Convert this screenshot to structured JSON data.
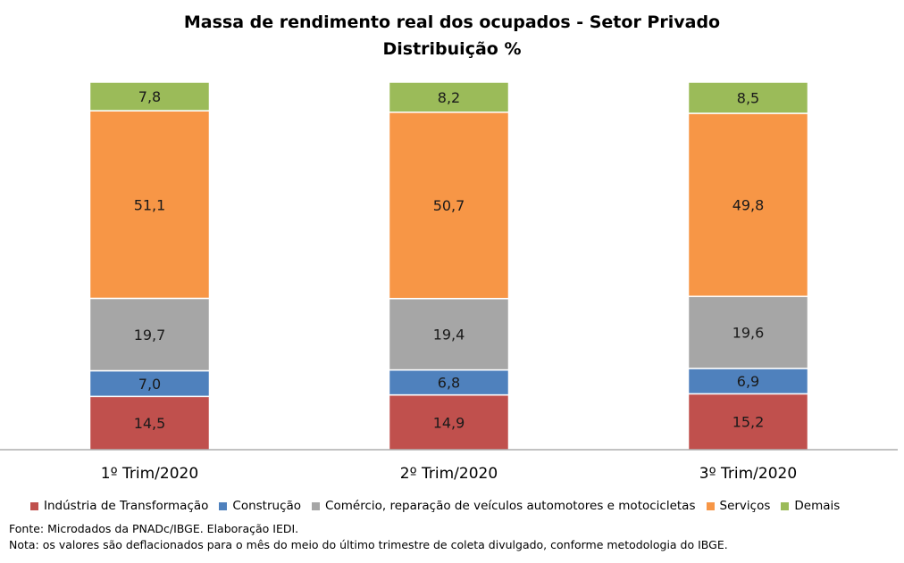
{
  "chart_data": {
    "type": "bar",
    "stacked": true,
    "title": "Massa de rendimento real dos ocupados - Setor Privado",
    "subtitle": "Distribuição %",
    "categories": [
      "1º Trim/2020",
      "2º Trim/2020",
      "3º Trim/2020"
    ],
    "series": [
      {
        "name": "Indústria de Transformação",
        "color": "#c0504d",
        "values": [
          14.5,
          14.9,
          15.2
        ],
        "labels": [
          "14,5",
          "14,9",
          "15,2"
        ]
      },
      {
        "name": "Construção",
        "color": "#4f81bd",
        "values": [
          7.0,
          6.8,
          6.9
        ],
        "labels": [
          "7,0",
          "6,8",
          "6,9"
        ]
      },
      {
        "name": "Comércio, reparação de veículos automotores e motocicletas",
        "color": "#a6a6a6",
        "values": [
          19.7,
          19.4,
          19.6
        ],
        "labels": [
          "19,7",
          "19,4",
          "19,6"
        ]
      },
      {
        "name": "Serviços",
        "color": "#f79646",
        "values": [
          51.1,
          50.7,
          49.8
        ],
        "labels": [
          "51,1",
          "50,7",
          "49,8"
        ]
      },
      {
        "name": "Demais",
        "color": "#9bbb59",
        "values": [
          7.8,
          8.2,
          8.5
        ],
        "labels": [
          "7,8",
          "8,2",
          "8,5"
        ]
      }
    ],
    "ylim": [
      0,
      100
    ],
    "grid": false,
    "legend_position": "bottom"
  },
  "footer": {
    "source": "Fonte: Microdados da PNADc/IBGE. Elaboração IEDI.",
    "note": "Nota: os valores são deflacionados para o mês do meio do último trimestre de coleta divulgado, conforme metodologia do IBGE."
  }
}
